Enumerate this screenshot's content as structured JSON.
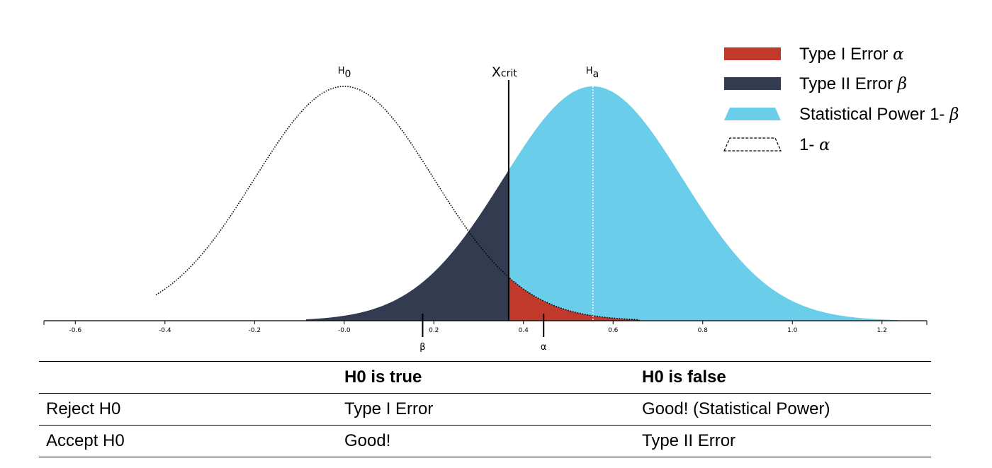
{
  "chart_data": {
    "type": "area",
    "title": "",
    "xlabel": "",
    "ylabel": "",
    "xlim": [
      -0.67,
      1.3
    ],
    "x_ticks": [
      "-0.6",
      "-0.4",
      "-0.2",
      "-0.0",
      "0.2",
      "0.4",
      "0.6",
      "0.8",
      "1.0",
      "1.2"
    ],
    "x_tick_values": [
      -0.6,
      -0.4,
      -0.2,
      0.0,
      0.2,
      0.4,
      0.6,
      0.8,
      1.0,
      1.2
    ],
    "distributions": [
      {
        "name": "H0",
        "mean": 0.0,
        "sd": 0.2,
        "style": "dotted outline"
      },
      {
        "name": "Ha",
        "mean": 0.555,
        "sd": 0.2,
        "style": "filled"
      }
    ],
    "critical_value": 0.367,
    "critical_label": "X",
    "critical_label_sub": "crit",
    "h0_label": "H",
    "h0_label_sub": "0",
    "ha_label": "H",
    "ha_label_sub": "a",
    "markers": [
      {
        "label": "β",
        "x": 0.175
      },
      {
        "label": "α",
        "x": 0.445
      }
    ],
    "colors": {
      "type1": "#c0392b",
      "type2": "#323b4f",
      "power": "#6acde9",
      "outline": "#000000"
    },
    "legend": [
      {
        "label": "Type I Error",
        "symbol": "α",
        "swatch": "type1"
      },
      {
        "label": "Type II Error",
        "symbol": "β",
        "swatch": "type2"
      },
      {
        "label": "Statistical Power 1-",
        "symbol": "β",
        "swatch": "power"
      },
      {
        "label": "1-",
        "symbol": "α",
        "swatch": "outline"
      }
    ],
    "legend_position": "top-right"
  },
  "table": {
    "headers": [
      "",
      "H0 is true",
      "H0 is false"
    ],
    "rows": [
      [
        "Reject H0",
        "Type I Error",
        "Good! (Statistical Power)"
      ],
      [
        "Accept H0",
        "Good!",
        "Type II Error"
      ]
    ]
  }
}
